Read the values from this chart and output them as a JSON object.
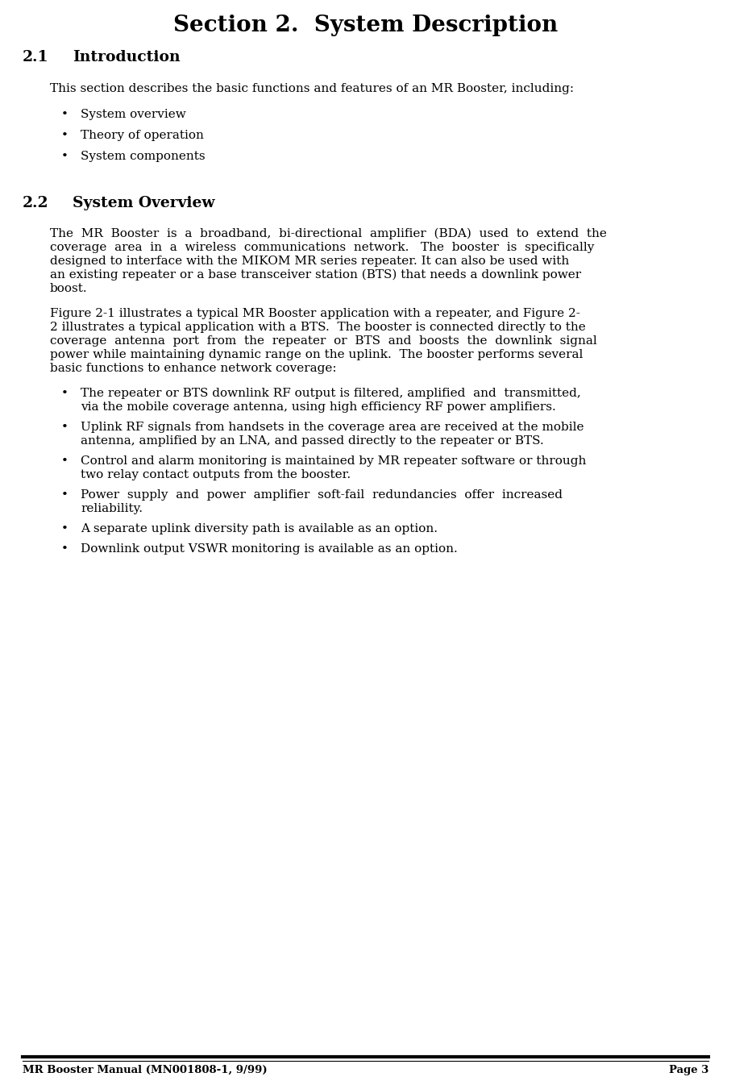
{
  "title": "Section 2.  System Description",
  "section21_label": "2.1",
  "section21_heading": "Introduction",
  "section21_intro": "This section describes the basic functions and features of an MR Booster, including:",
  "section21_bullets": [
    "System overview",
    "Theory of operation",
    "System components"
  ],
  "section22_label": "2.2",
  "section22_heading": "System Overview",
  "section22_para1_lines": [
    "The  MR  Booster  is  a  broadband,  bi-directional  amplifier  (BDA)  used  to  extend  the",
    "coverage  area  in  a  wireless  communications  network.   The  booster  is  specifically",
    "designed to interface with the MIKOM MR series repeater. It can also be used with",
    "an existing repeater or a base transceiver station (BTS) that needs a downlink power",
    "boost."
  ],
  "section22_para2_lines": [
    "Figure 2-1 illustrates a typical MR Booster application with a repeater, and Figure 2-",
    "2 illustrates a typical application with a BTS.  The booster is connected directly to the",
    "coverage  antenna  port  from  the  repeater  or  BTS  and  boosts  the  downlink  signal",
    "power while maintaining dynamic range on the uplink.  The booster performs several",
    "basic functions to enhance network coverage:"
  ],
  "section22_bullets": [
    [
      "The repeater or BTS downlink RF output is filtered, amplified  and  transmitted,",
      "via the mobile coverage antenna, using high efficiency RF power amplifiers."
    ],
    [
      "Uplink RF signals from handsets in the coverage area are received at the mobile",
      "antenna, amplified by an LNA, and passed directly to the repeater or BTS."
    ],
    [
      "Control and alarm monitoring is maintained by MR repeater software or through",
      "two relay contact outputs from the booster."
    ],
    [
      "Power  supply  and  power  amplifier  soft-fail  redundancies  offer  increased",
      "reliability."
    ],
    [
      "A separate uplink diversity path is available as an option."
    ],
    [
      "Downlink output VSWR monitoring is available as an option."
    ]
  ],
  "footer_left": "MR Booster Manual (MN001808-1, 9/99)",
  "footer_right": "Page 3",
  "bg_color": "#ffffff",
  "text_color": "#000000"
}
